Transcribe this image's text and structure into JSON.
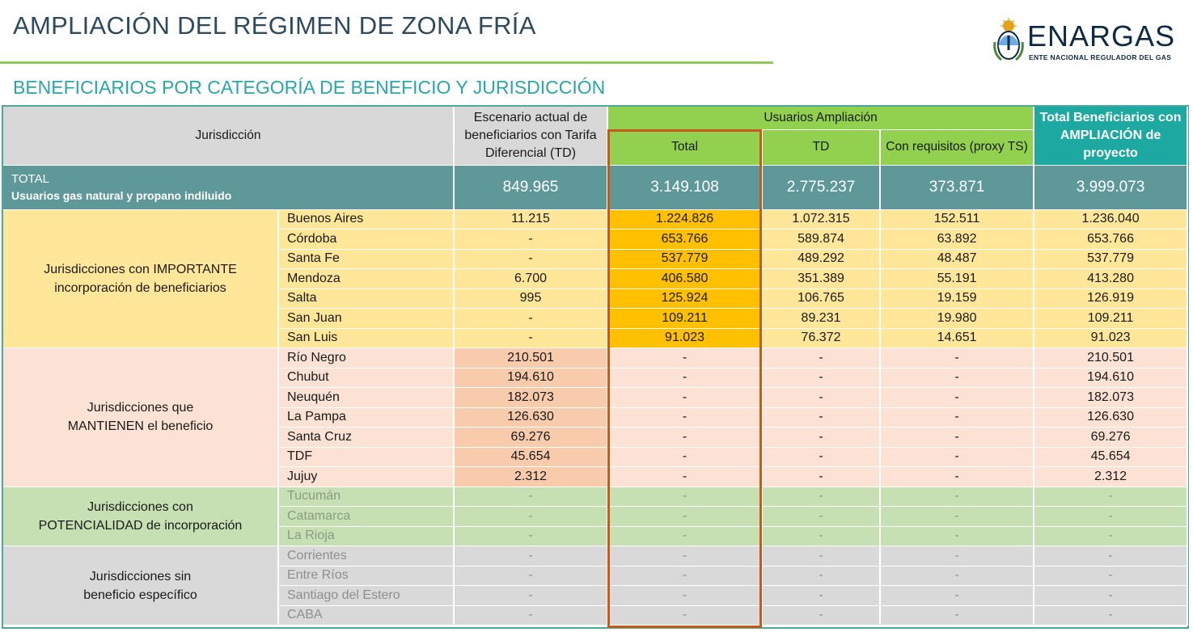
{
  "header": {
    "title": "AMPLIACIÓN DEL RÉGIMEN DE ZONA FRÍA",
    "subtitle": "BENEFICIARIOS POR CATEGORÍA DE BENEFICIO Y JURISDICCIÓN",
    "logo_text": "ENARGAS",
    "logo_subtext": "ENTE NACIONAL REGULADOR DEL GAS"
  },
  "table": {
    "headers": {
      "jurisdiccion": "Jurisdicción",
      "escenario": "Escenario actual de beneficiarios con Tarifa Diferencial (TD)",
      "usuarios_ampliacion": "Usuarios Ampliación",
      "total": "Total",
      "td": "TD",
      "con_requisitos": "Con requisitos (proxy TS)",
      "total_beneficiarios": "Total  Beneficiarios con AMPLIACIÓN de proyecto"
    },
    "total_row": {
      "label": "TOTAL",
      "sublabel": "Usuarios gas natural y propano indiluido",
      "escenario": "849.965",
      "total": "3.149.108",
      "td": "2.775.237",
      "con_requisitos": "373.871",
      "total_beneficiarios": "3.999.073"
    },
    "groups": [
      {
        "label_line1": "Jurisdicciones con IMPORTANTE",
        "label_line2": "incorporación de beneficiarios",
        "rows": [
          {
            "name": "Buenos Aires",
            "escenario": "11.215",
            "total": "1.224.826",
            "td": "1.072.315",
            "con_requisitos": "152.511",
            "total_beneficiarios": "1.236.040"
          },
          {
            "name": "Córdoba",
            "escenario": "-",
            "total": "653.766",
            "td": "589.874",
            "con_requisitos": "63.892",
            "total_beneficiarios": "653.766"
          },
          {
            "name": "Santa Fe",
            "escenario": "-",
            "total": "537.779",
            "td": "489.292",
            "con_requisitos": "48.487",
            "total_beneficiarios": "537.779"
          },
          {
            "name": "Mendoza",
            "escenario": "6.700",
            "total": "406.580",
            "td": "351.389",
            "con_requisitos": "55.191",
            "total_beneficiarios": "413.280"
          },
          {
            "name": "Salta",
            "escenario": "995",
            "total": "125.924",
            "td": "106.765",
            "con_requisitos": "19.159",
            "total_beneficiarios": "126.919"
          },
          {
            "name": "San Juan",
            "escenario": "-",
            "total": "109.211",
            "td": "89.231",
            "con_requisitos": "19.980",
            "total_beneficiarios": "109.211"
          },
          {
            "name": "San Luis",
            "escenario": "-",
            "total": "91.023",
            "td": "76.372",
            "con_requisitos": "14.651",
            "total_beneficiarios": "91.023"
          }
        ]
      },
      {
        "label_line1": "Jurisdicciones que",
        "label_line2": "MANTIENEN el beneficio",
        "rows": [
          {
            "name": "Río Negro",
            "escenario": "210.501",
            "total": "-",
            "td": "-",
            "con_requisitos": "-",
            "total_beneficiarios": "210.501"
          },
          {
            "name": "Chubut",
            "escenario": "194.610",
            "total": "-",
            "td": "-",
            "con_requisitos": "-",
            "total_beneficiarios": "194.610"
          },
          {
            "name": "Neuquén",
            "escenario": "182.073",
            "total": "-",
            "td": "-",
            "con_requisitos": "-",
            "total_beneficiarios": "182.073"
          },
          {
            "name": "La Pampa",
            "escenario": "126.630",
            "total": "-",
            "td": "-",
            "con_requisitos": "-",
            "total_beneficiarios": "126.630"
          },
          {
            "name": "Santa Cruz",
            "escenario": "69.276",
            "total": "-",
            "td": "-",
            "con_requisitos": "-",
            "total_beneficiarios": "69.276"
          },
          {
            "name": "TDF",
            "escenario": "45.654",
            "total": "-",
            "td": "-",
            "con_requisitos": "-",
            "total_beneficiarios": "45.654"
          },
          {
            "name": "Jujuy",
            "escenario": "2.312",
            "total": "-",
            "td": "-",
            "con_requisitos": "-",
            "total_beneficiarios": "2.312"
          }
        ]
      },
      {
        "label_line1": "Jurisdicciones con",
        "label_line2": "POTENCIALIDAD de incorporación",
        "rows": [
          {
            "name": "Tucumán",
            "escenario": "-",
            "total": "-",
            "td": "-",
            "con_requisitos": "-",
            "total_beneficiarios": "-"
          },
          {
            "name": "Catamarca",
            "escenario": "-",
            "total": "-",
            "td": "-",
            "con_requisitos": "-",
            "total_beneficiarios": "-"
          },
          {
            "name": "La Rioja",
            "escenario": "-",
            "total": "-",
            "td": "-",
            "con_requisitos": "-",
            "total_beneficiarios": "-"
          }
        ]
      },
      {
        "label_line1": "Jurisdicciones sin",
        "label_line2": "beneficio específico",
        "rows": [
          {
            "name": "Corrientes",
            "escenario": "-",
            "total": "-",
            "td": "-",
            "con_requisitos": "-",
            "total_beneficiarios": "-"
          },
          {
            "name": "Entre Ríos",
            "escenario": "-",
            "total": "-",
            "td": "-",
            "con_requisitos": "-",
            "total_beneficiarios": "-"
          },
          {
            "name": "Santiago del Estero",
            "escenario": "-",
            "total": "-",
            "td": "-",
            "con_requisitos": "-",
            "total_beneficiarios": "-"
          },
          {
            "name": "CABA",
            "escenario": "-",
            "total": "-",
            "td": "-",
            "con_requisitos": "-",
            "total_beneficiarios": "-"
          }
        ]
      }
    ]
  }
}
